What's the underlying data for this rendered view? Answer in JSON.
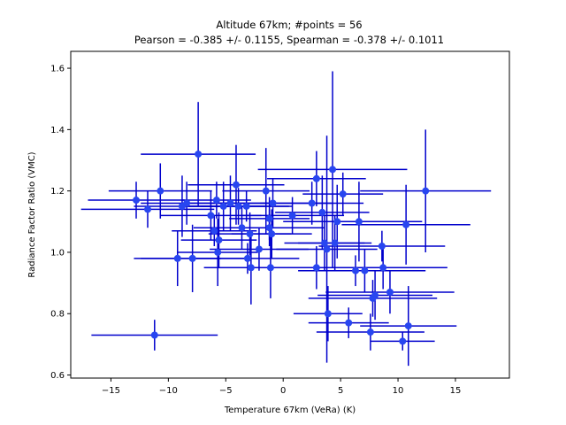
{
  "chart_data": {
    "type": "scatter",
    "title": "Altitude 67km;  #points = 56",
    "subtitle": "Pearson = -0.385 +/-  0.1155, Spearman = -0.378 +/-  0.1011",
    "xlabel": "Temperature 67km (VeRa) (K)",
    "ylabel": "Radiance Factor Ratio (VMC)",
    "xlim": [
      -18.5,
      19.7
    ],
    "ylim": [
      0.59,
      1.655
    ],
    "xticks": [
      -15,
      -10,
      -5,
      0,
      5,
      10,
      15
    ],
    "yticks": [
      0.6,
      0.8,
      1.0,
      1.2,
      1.4,
      1.6
    ],
    "xtick_labels": [
      "−15",
      "−10",
      "−5",
      "0",
      "5",
      "10",
      "15"
    ],
    "ytick_labels": [
      "0.6",
      "0.8",
      "1.0",
      "1.2",
      "1.4",
      "1.6"
    ],
    "grid": false,
    "color": "#0000cc",
    "marker_color": "#2846f0",
    "points": [
      {
        "x": -11.2,
        "y": 0.73,
        "xerr": 5.5,
        "yerr": 0.05
      },
      {
        "x": -7.4,
        "y": 1.32,
        "xerr": 5.0,
        "yerr": 0.17
      },
      {
        "x": -12.8,
        "y": 1.17,
        "xerr": 4.2,
        "yerr": 0.06
      },
      {
        "x": -11.8,
        "y": 1.14,
        "xerr": 5.8,
        "yerr": 0.06
      },
      {
        "x": -10.7,
        "y": 1.2,
        "xerr": 4.5,
        "yerr": 0.09
      },
      {
        "x": -8.8,
        "y": 1.15,
        "xerr": 4.2,
        "yerr": 0.1
      },
      {
        "x": -8.4,
        "y": 1.16,
        "xerr": 4.0,
        "yerr": 0.07
      },
      {
        "x": -9.2,
        "y": 0.98,
        "xerr": 3.8,
        "yerr": 0.09
      },
      {
        "x": -7.9,
        "y": 0.98,
        "xerr": 4.5,
        "yerr": 0.11
      },
      {
        "x": -6.3,
        "y": 1.12,
        "xerr": 4.4,
        "yerr": 0.08
      },
      {
        "x": -6.0,
        "y": 1.07,
        "xerr": 3.7,
        "yerr": 0.05
      },
      {
        "x": -5.6,
        "y": 1.04,
        "xerr": 3.3,
        "yerr": 0.09
      },
      {
        "x": -5.8,
        "y": 1.17,
        "xerr": 3.0,
        "yerr": 0.06
      },
      {
        "x": -5.2,
        "y": 1.15,
        "xerr": 3.6,
        "yerr": 0.08
      },
      {
        "x": -4.6,
        "y": 1.16,
        "xerr": 4.0,
        "yerr": 0.09
      },
      {
        "x": -4.1,
        "y": 1.22,
        "xerr": 4.2,
        "yerr": 0.13
      },
      {
        "x": -3.9,
        "y": 1.15,
        "xerr": 4.4,
        "yerr": 0.06
      },
      {
        "x": -5.7,
        "y": 1.0,
        "xerr": 3.5,
        "yerr": 0.11
      },
      {
        "x": -3.6,
        "y": 1.08,
        "xerr": 4.2,
        "yerr": 0.07
      },
      {
        "x": -3.2,
        "y": 1.15,
        "xerr": 4.0,
        "yerr": 0.05
      },
      {
        "x": -2.9,
        "y": 1.06,
        "xerr": 3.6,
        "yerr": 0.07
      },
      {
        "x": -2.8,
        "y": 0.95,
        "xerr": 4.1,
        "yerr": 0.12
      },
      {
        "x": -3.1,
        "y": 0.98,
        "xerr": 4.5,
        "yerr": 0.05
      },
      {
        "x": -2.1,
        "y": 1.01,
        "xerr": 4.3,
        "yerr": 0.07
      },
      {
        "x": -1.5,
        "y": 1.2,
        "xerr": 3.8,
        "yerr": 0.14
      },
      {
        "x": -1.2,
        "y": 1.08,
        "xerr": 4.8,
        "yerr": 0.06
      },
      {
        "x": -1.0,
        "y": 1.06,
        "xerr": 3.5,
        "yerr": 0.08
      },
      {
        "x": -1.1,
        "y": 0.95,
        "xerr": 4.2,
        "yerr": 0.1
      },
      {
        "x": -0.9,
        "y": 1.16,
        "xerr": 5.2,
        "yerr": 0.08
      },
      {
        "x": -1.2,
        "y": 1.11,
        "xerr": 3.5,
        "yerr": 0.07
      },
      {
        "x": 0.8,
        "y": 1.12,
        "xerr": 4.5,
        "yerr": 0.06
      },
      {
        "x": 2.5,
        "y": 1.16,
        "xerr": 4.5,
        "yerr": 0.07
      },
      {
        "x": 2.9,
        "y": 1.24,
        "xerr": 4.3,
        "yerr": 0.09
      },
      {
        "x": 2.9,
        "y": 0.95,
        "xerr": 4.5,
        "yerr": 0.07
      },
      {
        "x": 3.4,
        "y": 1.13,
        "xerr": 4.1,
        "yerr": 0.12
      },
      {
        "x": 3.6,
        "y": 1.03,
        "xerr": 3.5,
        "yerr": 0.09
      },
      {
        "x": 3.8,
        "y": 1.01,
        "xerr": 4.4,
        "yerr": 0.37
      },
      {
        "x": 3.9,
        "y": 0.8,
        "xerr": 3.0,
        "yerr": 0.09
      },
      {
        "x": 4.3,
        "y": 1.27,
        "xerr": 6.5,
        "yerr": 0.32
      },
      {
        "x": 4.5,
        "y": 1.03,
        "xerr": 3.2,
        "yerr": 0.09
      },
      {
        "x": 4.7,
        "y": 1.1,
        "xerr": 4.7,
        "yerr": 0.12
      },
      {
        "x": 5.2,
        "y": 1.19,
        "xerr": 3.5,
        "yerr": 0.07
      },
      {
        "x": 5.7,
        "y": 0.77,
        "xerr": 3.5,
        "yerr": 0.05
      },
      {
        "x": 6.3,
        "y": 0.94,
        "xerr": 5.0,
        "yerr": 0.05
      },
      {
        "x": 6.6,
        "y": 1.1,
        "xerr": 5.5,
        "yerr": 0.13
      },
      {
        "x": 7.1,
        "y": 0.94,
        "xerr": 5.3,
        "yerr": 0.07
      },
      {
        "x": 7.6,
        "y": 0.74,
        "xerr": 4.7,
        "yerr": 0.06
      },
      {
        "x": 7.8,
        "y": 0.85,
        "xerr": 5.6,
        "yerr": 0.06
      },
      {
        "x": 8.0,
        "y": 0.86,
        "xerr": 5.0,
        "yerr": 0.08
      },
      {
        "x": 8.7,
        "y": 0.95,
        "xerr": 5.6,
        "yerr": 0.07
      },
      {
        "x": 8.6,
        "y": 1.02,
        "xerr": 5.5,
        "yerr": 0.05
      },
      {
        "x": 9.3,
        "y": 0.87,
        "xerr": 5.6,
        "yerr": 0.07
      },
      {
        "x": 10.4,
        "y": 0.71,
        "xerr": 2.8,
        "yerr": 0.03
      },
      {
        "x": 10.7,
        "y": 1.09,
        "xerr": 5.6,
        "yerr": 0.13
      },
      {
        "x": 10.9,
        "y": 0.76,
        "xerr": 4.2,
        "yerr": 0.13
      },
      {
        "x": 12.4,
        "y": 1.2,
        "xerr": 5.7,
        "yerr": 0.2
      }
    ]
  }
}
